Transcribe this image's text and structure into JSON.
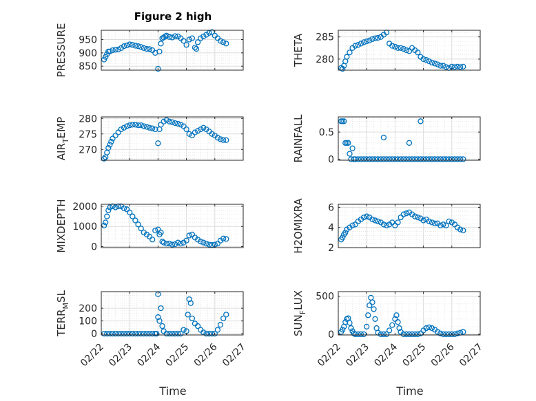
{
  "figure": {
    "title": "Figure 2 high",
    "xlabel": "Time",
    "x_tick_labels": [
      "02/22",
      "02/23",
      "02/24",
      "02/25",
      "02/26",
      "02/27"
    ]
  },
  "chart_data": [
    {
      "type": "scatter",
      "name": "PRESSURE",
      "ylabel": "PRESSURE",
      "title": "Figure 2 high",
      "xlabel": "",
      "xlim": [
        0,
        5
      ],
      "ylim": [
        835,
        985
      ],
      "yticks": [
        850,
        900,
        950
      ],
      "grid": true,
      "x": [
        0.1,
        0.15,
        0.2,
        0.25,
        0.3,
        0.4,
        0.5,
        0.6,
        0.7,
        0.8,
        0.9,
        1.0,
        1.1,
        1.2,
        1.3,
        1.4,
        1.5,
        1.6,
        1.7,
        1.8,
        1.9,
        2.0,
        2.05,
        2.1,
        2.15,
        2.2,
        2.25,
        2.3,
        2.4,
        2.5,
        2.6,
        2.7,
        2.8,
        2.9,
        3.0,
        3.1,
        3.2,
        3.3,
        3.35,
        3.4,
        3.5,
        3.6,
        3.7,
        3.8,
        3.9,
        4.0,
        4.1,
        4.2,
        4.3,
        4.4
      ],
      "y": [
        875,
        885,
        895,
        905,
        905,
        910,
        912,
        913,
        918,
        925,
        928,
        932,
        930,
        927,
        925,
        922,
        918,
        915,
        914,
        910,
        900,
        840,
        905,
        935,
        955,
        958,
        962,
        965,
        960,
        958,
        963,
        962,
        955,
        945,
        930,
        950,
        955,
        920,
        915,
        940,
        955,
        962,
        968,
        975,
        978,
        965,
        955,
        945,
        940,
        935
      ]
    },
    {
      "type": "scatter",
      "name": "THETA",
      "ylabel": "THETA",
      "xlim": [
        0,
        5
      ],
      "ylim": [
        277.5,
        286.5
      ],
      "yticks": [
        280,
        285
      ],
      "grid": true,
      "x": [
        0.1,
        0.15,
        0.2,
        0.25,
        0.3,
        0.4,
        0.5,
        0.6,
        0.7,
        0.8,
        0.9,
        1.0,
        1.1,
        1.2,
        1.3,
        1.4,
        1.5,
        1.6,
        1.7,
        1.8,
        1.9,
        2.0,
        2.1,
        2.2,
        2.3,
        2.4,
        2.5,
        2.6,
        2.7,
        2.8,
        2.9,
        3.0,
        3.1,
        3.2,
        3.3,
        3.4,
        3.5,
        3.6,
        3.7,
        3.8,
        3.9,
        4.0,
        4.1,
        4.2,
        4.3,
        4.4
      ],
      "y": [
        278.0,
        277.8,
        278.5,
        279.5,
        280.5,
        281.5,
        282.5,
        283.0,
        283.2,
        283.5,
        283.8,
        284.0,
        284.2,
        284.5,
        284.7,
        284.8,
        285.0,
        285.5,
        286.0,
        283.5,
        283.0,
        282.8,
        282.5,
        282.5,
        282.3,
        282.0,
        281.8,
        282.5,
        282.0,
        281.5,
        280.5,
        280.0,
        279.8,
        279.5,
        279.2,
        279.0,
        278.8,
        278.5,
        278.5,
        278.2,
        278.0,
        278.3,
        278.2,
        278.3,
        278.2,
        278.3
      ]
    },
    {
      "type": "scatter",
      "name": "AIR_TEMP",
      "ylabel": "AIR_TEMP",
      "xlim": [
        0,
        5
      ],
      "ylim": [
        266.5,
        280.5
      ],
      "yticks": [
        270,
        275,
        280
      ],
      "grid": true,
      "x": [
        0.1,
        0.15,
        0.2,
        0.25,
        0.3,
        0.35,
        0.4,
        0.5,
        0.6,
        0.7,
        0.8,
        0.9,
        1.0,
        1.1,
        1.2,
        1.3,
        1.4,
        1.5,
        1.6,
        1.7,
        1.8,
        1.9,
        2.0,
        2.05,
        2.1,
        2.2,
        2.3,
        2.4,
        2.5,
        2.6,
        2.7,
        2.8,
        2.9,
        3.0,
        3.1,
        3.2,
        3.3,
        3.4,
        3.5,
        3.6,
        3.7,
        3.8,
        3.9,
        4.0,
        4.1,
        4.2,
        4.3,
        4.4
      ],
      "y": [
        267.0,
        267.5,
        269.0,
        270.5,
        271.5,
        272.5,
        273.5,
        274.5,
        275.5,
        276.5,
        277.0,
        277.5,
        277.8,
        278.0,
        278.0,
        277.8,
        277.8,
        277.5,
        277.3,
        277.0,
        276.8,
        276.5,
        272.0,
        276.5,
        278.0,
        279.0,
        279.5,
        279.0,
        278.8,
        278.5,
        278.3,
        278.0,
        277.5,
        276.5,
        275.0,
        274.5,
        275.5,
        276.0,
        276.5,
        277.0,
        276.5,
        275.8,
        275.0,
        274.5,
        273.8,
        273.3,
        273.0,
        273.0
      ]
    },
    {
      "type": "scatter",
      "name": "RAINFALL",
      "ylabel": "RAINFALL",
      "xlim": [
        0,
        5
      ],
      "ylim": [
        -0.02,
        0.78
      ],
      "yticks": [
        0,
        0.5
      ],
      "grid": true,
      "x": [
        0.1,
        0.15,
        0.2,
        0.25,
        0.3,
        0.35,
        0.4,
        0.45,
        0.5,
        0.55,
        0.6,
        0.7,
        0.8,
        0.9,
        1.0,
        1.1,
        1.2,
        1.3,
        1.4,
        1.5,
        1.6,
        1.7,
        1.8,
        1.9,
        2.0,
        2.1,
        2.2,
        2.3,
        2.4,
        2.5,
        2.6,
        2.7,
        2.8,
        2.9,
        3.0,
        3.1,
        3.2,
        3.3,
        3.4,
        3.5,
        3.6,
        3.7,
        3.8,
        3.9,
        4.0,
        4.1,
        4.2,
        4.3,
        4.4,
        1.6,
        2.5,
        2.9
      ],
      "y": [
        0.7,
        0.7,
        0.7,
        0.3,
        0.3,
        0.3,
        0.1,
        0.0,
        0.2,
        0.0,
        0.0,
        0.0,
        0.0,
        0.0,
        0.0,
        0.0,
        0.0,
        0.0,
        0.0,
        0.0,
        0.0,
        0.0,
        0.0,
        0.0,
        0.0,
        0.0,
        0.0,
        0.0,
        0.0,
        0.0,
        0.0,
        0.0,
        0.0,
        0.0,
        0.0,
        0.0,
        0.0,
        0.0,
        0.0,
        0.0,
        0.0,
        0.0,
        0.0,
        0.0,
        0.0,
        0.0,
        0.0,
        0.0,
        0.0,
        0.4,
        0.3,
        0.7
      ]
    },
    {
      "type": "scatter",
      "name": "MIXDEPTH",
      "ylabel": "MIXDEPTH",
      "xlim": [
        0,
        5
      ],
      "ylim": [
        -50,
        2100
      ],
      "yticks": [
        0,
        1000,
        2000
      ],
      "grid": true,
      "x": [
        0.1,
        0.15,
        0.2,
        0.25,
        0.3,
        0.4,
        0.5,
        0.6,
        0.7,
        0.8,
        0.9,
        1.0,
        1.1,
        1.2,
        1.3,
        1.4,
        1.5,
        1.6,
        1.7,
        1.8,
        1.9,
        2.0,
        2.05,
        2.1,
        2.15,
        2.2,
        2.3,
        2.4,
        2.5,
        2.6,
        2.7,
        2.8,
        2.9,
        3.0,
        3.1,
        3.2,
        3.3,
        3.4,
        3.5,
        3.6,
        3.7,
        3.8,
        3.9,
        4.0,
        4.1,
        4.2,
        4.3,
        4.4
      ],
      "y": [
        1050,
        1200,
        1500,
        1800,
        1950,
        2000,
        1950,
        2000,
        2000,
        1900,
        1850,
        1700,
        1500,
        1300,
        1100,
        900,
        700,
        600,
        500,
        350,
        800,
        850,
        600,
        700,
        250,
        200,
        150,
        150,
        100,
        120,
        200,
        150,
        200,
        300,
        550,
        600,
        450,
        350,
        250,
        200,
        150,
        100,
        80,
        100,
        150,
        300,
        400,
        380
      ]
    },
    {
      "type": "scatter",
      "name": "H2OMIXRA",
      "ylabel": "H2OMIXRA",
      "xlim": [
        0,
        5
      ],
      "ylim": [
        2,
        6.3
      ],
      "yticks": [
        2,
        4,
        6
      ],
      "grid": true,
      "x": [
        0.1,
        0.15,
        0.2,
        0.25,
        0.3,
        0.4,
        0.5,
        0.6,
        0.7,
        0.8,
        0.9,
        1.0,
        1.1,
        1.2,
        1.3,
        1.4,
        1.5,
        1.6,
        1.7,
        1.8,
        1.9,
        2.0,
        2.1,
        2.2,
        2.3,
        2.4,
        2.5,
        2.6,
        2.7,
        2.8,
        2.9,
        3.0,
        3.1,
        3.2,
        3.3,
        3.4,
        3.5,
        3.6,
        3.7,
        3.8,
        3.9,
        4.0,
        4.1,
        4.2,
        4.3,
        4.4
      ],
      "y": [
        2.8,
        3.0,
        3.3,
        3.5,
        3.8,
        4.0,
        4.2,
        4.3,
        4.6,
        4.8,
        5.0,
        5.1,
        5.0,
        4.8,
        4.7,
        4.6,
        4.5,
        4.3,
        4.2,
        4.3,
        4.5,
        4.2,
        4.5,
        5.0,
        5.3,
        5.4,
        5.5,
        5.3,
        5.1,
        5.0,
        4.9,
        4.7,
        4.8,
        4.6,
        4.5,
        4.4,
        4.4,
        4.2,
        4.3,
        4.2,
        4.6,
        4.5,
        4.3,
        4.0,
        3.8,
        3.7
      ]
    },
    {
      "type": "scatter",
      "name": "TERR_MSL",
      "ylabel": "TERR_MSL",
      "xlim": [
        0,
        5
      ],
      "ylim": [
        -10,
        330
      ],
      "yticks": [
        0,
        100,
        200
      ],
      "grid": true,
      "x": [
        0.1,
        0.2,
        0.3,
        0.4,
        0.5,
        0.6,
        0.7,
        0.8,
        0.9,
        1.0,
        1.1,
        1.2,
        1.3,
        1.4,
        1.5,
        1.6,
        1.7,
        1.8,
        1.9,
        1.95,
        2.0,
        2.0,
        2.05,
        2.1,
        2.15,
        2.2,
        2.3,
        2.4,
        2.5,
        2.6,
        2.7,
        2.8,
        2.9,
        3.0,
        3.05,
        3.1,
        3.15,
        3.2,
        3.3,
        3.4,
        3.5,
        3.6,
        3.7,
        3.8,
        3.9,
        4.0,
        4.1,
        4.2,
        4.3,
        4.4
      ],
      "y": [
        0,
        0,
        0,
        0,
        0,
        0,
        0,
        0,
        0,
        0,
        0,
        0,
        0,
        0,
        0,
        0,
        0,
        0,
        0,
        0,
        310,
        130,
        100,
        200,
        60,
        20,
        0,
        0,
        0,
        0,
        0,
        0,
        30,
        20,
        150,
        270,
        240,
        120,
        80,
        60,
        30,
        10,
        0,
        0,
        0,
        0,
        30,
        70,
        120,
        150
      ]
    },
    {
      "type": "scatter",
      "name": "SUN_FLUX",
      "ylabel": "SUN_FLUX",
      "xlim": [
        0,
        5
      ],
      "ylim": [
        -10,
        560
      ],
      "yticks": [
        0,
        500
      ],
      "grid": true,
      "x": [
        0.1,
        0.15,
        0.2,
        0.25,
        0.3,
        0.35,
        0.4,
        0.45,
        0.5,
        0.55,
        0.6,
        0.7,
        0.8,
        0.9,
        1.0,
        1.05,
        1.1,
        1.15,
        1.2,
        1.25,
        1.3,
        1.35,
        1.4,
        1.5,
        1.6,
        1.7,
        1.8,
        1.9,
        2.0,
        2.05,
        2.1,
        2.15,
        2.2,
        2.3,
        2.4,
        2.5,
        2.6,
        2.7,
        2.8,
        2.9,
        3.0,
        3.1,
        3.2,
        3.3,
        3.4,
        3.5,
        3.6,
        3.7,
        3.8,
        3.9,
        4.0,
        4.1,
        4.2,
        4.3,
        4.4
      ],
      "y": [
        30,
        60,
        100,
        160,
        200,
        210,
        150,
        80,
        40,
        10,
        0,
        0,
        0,
        0,
        100,
        250,
        380,
        480,
        420,
        330,
        200,
        80,
        20,
        0,
        0,
        0,
        50,
        120,
        200,
        250,
        160,
        80,
        30,
        0,
        0,
        0,
        0,
        0,
        0,
        10,
        50,
        80,
        90,
        80,
        60,
        30,
        10,
        0,
        0,
        0,
        0,
        0,
        10,
        20,
        30
      ]
    }
  ],
  "style": {
    "marker_color": "#0072BD",
    "grid_color": "#dcdcdc",
    "axis_color": "#262626"
  }
}
